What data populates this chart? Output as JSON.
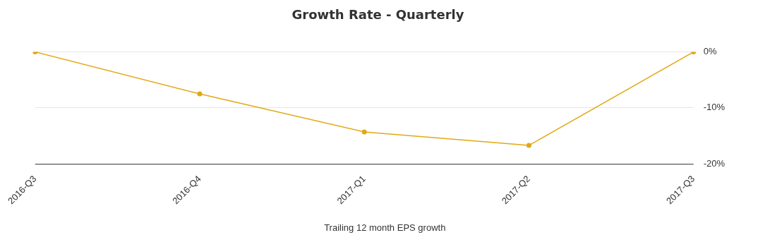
{
  "chart_data": {
    "type": "line",
    "title": "Growth Rate - Quarterly",
    "categories": [
      "2016-Q3",
      "2016-Q4",
      "2017-Q1",
      "2017-Q2",
      "2017-Q3"
    ],
    "series": [
      {
        "name": "Trailing 12 month EPS growth",
        "color": "#e0a914",
        "values": [
          0,
          -7.5,
          -14.3,
          -16.7,
          0
        ]
      }
    ],
    "ylim": [
      -20,
      0
    ],
    "yticks": [
      {
        "value": -20,
        "label": "-20%"
      },
      {
        "value": -10,
        "label": "-10%"
      },
      {
        "value": 0,
        "label": "0%"
      }
    ],
    "grid": "y",
    "legend": "bottom",
    "marker": "circle",
    "line_style": "solid"
  }
}
